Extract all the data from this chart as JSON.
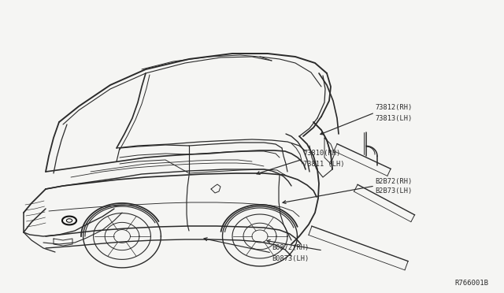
{
  "bg_color": "#f5f5f3",
  "line_color": "#2a2a2a",
  "text_color": "#2a2a2a",
  "ref_code": "R766001B",
  "labels": {
    "top_right": [
      "73812(RH)",
      "73813(LH)"
    ],
    "mid_upper": [
      "73810(RH)",
      "73811 (LH)"
    ],
    "mid_lower": [
      "B2B72(RH)",
      "B2B73(LH)"
    ],
    "bottom": [
      "B0872(RH)",
      "B0873(LH)"
    ]
  },
  "figsize": [
    6.4,
    3.72
  ],
  "dpi": 100
}
